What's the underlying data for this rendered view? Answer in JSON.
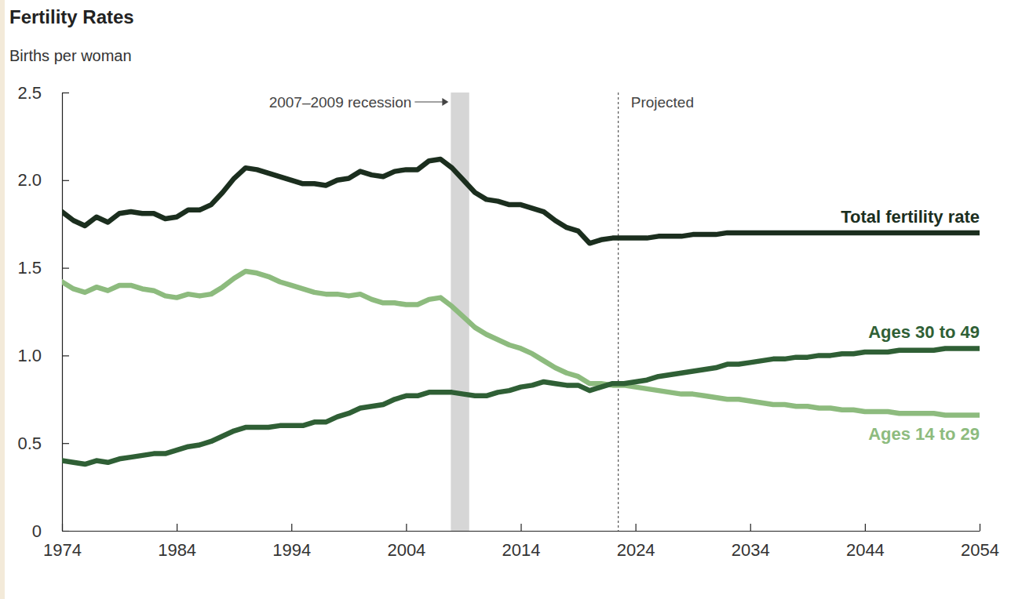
{
  "chart_data": {
    "type": "line",
    "title": "Fertility Rates",
    "subtitle": "Births per woman",
    "x": [
      1974,
      1975,
      1976,
      1977,
      1978,
      1979,
      1980,
      1981,
      1982,
      1983,
      1984,
      1985,
      1986,
      1987,
      1988,
      1989,
      1990,
      1991,
      1992,
      1993,
      1994,
      1995,
      1996,
      1997,
      1998,
      1999,
      2000,
      2001,
      2002,
      2003,
      2004,
      2005,
      2006,
      2007,
      2008,
      2009,
      2010,
      2011,
      2012,
      2013,
      2014,
      2015,
      2016,
      2017,
      2018,
      2019,
      2020,
      2021,
      2022,
      2023,
      2024,
      2025,
      2026,
      2027,
      2028,
      2029,
      2030,
      2031,
      2032,
      2033,
      2034,
      2035,
      2036,
      2037,
      2038,
      2039,
      2040,
      2041,
      2042,
      2043,
      2044,
      2045,
      2046,
      2047,
      2048,
      2049,
      2050,
      2051,
      2052,
      2053,
      2054
    ],
    "series": [
      {
        "name": "Total fertility rate",
        "color": "#1b2e1e",
        "values": [
          1.82,
          1.77,
          1.74,
          1.79,
          1.76,
          1.81,
          1.82,
          1.81,
          1.81,
          1.78,
          1.79,
          1.83,
          1.83,
          1.86,
          1.93,
          2.01,
          2.07,
          2.06,
          2.04,
          2.02,
          2.0,
          1.98,
          1.98,
          1.97,
          2.0,
          2.01,
          2.05,
          2.03,
          2.02,
          2.05,
          2.06,
          2.06,
          2.11,
          2.12,
          2.07,
          2.0,
          1.93,
          1.89,
          1.88,
          1.86,
          1.86,
          1.84,
          1.82,
          1.77,
          1.73,
          1.71,
          1.64,
          1.66,
          1.67,
          1.67,
          1.67,
          1.67,
          1.68,
          1.68,
          1.68,
          1.69,
          1.69,
          1.69,
          1.7,
          1.7,
          1.7,
          1.7,
          1.7,
          1.7,
          1.7,
          1.7,
          1.7,
          1.7,
          1.7,
          1.7,
          1.7,
          1.7,
          1.7,
          1.7,
          1.7,
          1.7,
          1.7,
          1.7,
          1.7,
          1.7,
          1.7
        ]
      },
      {
        "name": "Ages 30 to 49",
        "color": "#2f5f35",
        "values": [
          0.4,
          0.39,
          0.38,
          0.4,
          0.39,
          0.41,
          0.42,
          0.43,
          0.44,
          0.44,
          0.46,
          0.48,
          0.49,
          0.51,
          0.54,
          0.57,
          0.59,
          0.59,
          0.59,
          0.6,
          0.6,
          0.6,
          0.62,
          0.62,
          0.65,
          0.67,
          0.7,
          0.71,
          0.72,
          0.75,
          0.77,
          0.77,
          0.79,
          0.79,
          0.79,
          0.78,
          0.77,
          0.77,
          0.79,
          0.8,
          0.82,
          0.83,
          0.85,
          0.84,
          0.83,
          0.83,
          0.8,
          0.82,
          0.84,
          0.84,
          0.85,
          0.86,
          0.88,
          0.89,
          0.9,
          0.91,
          0.92,
          0.93,
          0.95,
          0.95,
          0.96,
          0.97,
          0.98,
          0.98,
          0.99,
          0.99,
          1.0,
          1.0,
          1.01,
          1.01,
          1.02,
          1.02,
          1.02,
          1.03,
          1.03,
          1.03,
          1.03,
          1.04,
          1.04,
          1.04,
          1.04
        ]
      },
      {
        "name": "Ages 14 to 29",
        "color": "#8dbb7e",
        "values": [
          1.42,
          1.38,
          1.36,
          1.39,
          1.37,
          1.4,
          1.4,
          1.38,
          1.37,
          1.34,
          1.33,
          1.35,
          1.34,
          1.35,
          1.39,
          1.44,
          1.48,
          1.47,
          1.45,
          1.42,
          1.4,
          1.38,
          1.36,
          1.35,
          1.35,
          1.34,
          1.35,
          1.32,
          1.3,
          1.3,
          1.29,
          1.29,
          1.32,
          1.33,
          1.28,
          1.22,
          1.16,
          1.12,
          1.09,
          1.06,
          1.04,
          1.01,
          0.97,
          0.93,
          0.9,
          0.88,
          0.84,
          0.84,
          0.83,
          0.83,
          0.82,
          0.81,
          0.8,
          0.79,
          0.78,
          0.78,
          0.77,
          0.76,
          0.75,
          0.75,
          0.74,
          0.73,
          0.72,
          0.72,
          0.71,
          0.71,
          0.7,
          0.7,
          0.69,
          0.69,
          0.68,
          0.68,
          0.68,
          0.67,
          0.67,
          0.67,
          0.67,
          0.66,
          0.66,
          0.66,
          0.66
        ]
      }
    ],
    "xlim": [
      1974,
      2054
    ],
    "xticks": [
      1974,
      1984,
      1994,
      2004,
      2014,
      2024,
      2034,
      2044,
      2054
    ],
    "ylim": [
      0,
      2.5
    ],
    "yticks": [
      0,
      0.5,
      {
        "value": 1,
        "label": "1.0"
      },
      1.5,
      {
        "value": 2,
        "label": "2.0"
      },
      2.5
    ],
    "grid": false,
    "recession": {
      "label": "2007–2009 recession",
      "start": 2007.9,
      "end": 2009.5
    },
    "projection": {
      "label": "Projected",
      "start": 2022.5
    }
  }
}
